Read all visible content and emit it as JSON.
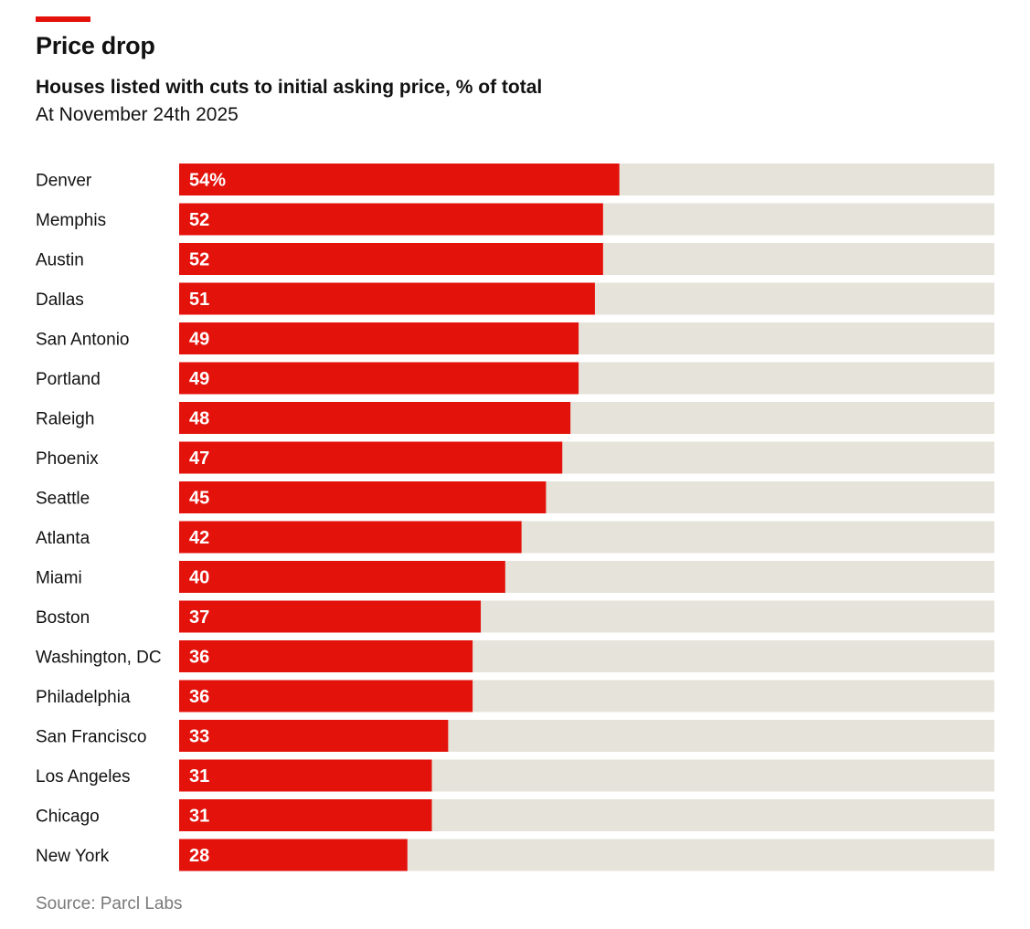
{
  "header": {
    "title": "Price drop",
    "subtitle": "Houses listed with cuts to initial asking price, % of total",
    "date_note": "At November 24th 2025"
  },
  "footer": {
    "source": "Source: Parcl Labs"
  },
  "colors": {
    "accent": "#e3120b",
    "bar": "#e3120b",
    "track": "#e6e3da",
    "label_text": "#121212",
    "value_text": "#ffffff",
    "source_text": "#7a7a7a"
  },
  "chart_data": {
    "type": "bar",
    "orientation": "horizontal",
    "title": "Price drop",
    "subtitle": "Houses listed with cuts to initial asking price, % of total",
    "xlim": [
      0,
      100
    ],
    "grid": false,
    "legend": "none",
    "unit_suffix_first_label": "%",
    "categories": [
      "Denver",
      "Memphis",
      "Austin",
      "Dallas",
      "San Antonio",
      "Portland",
      "Raleigh",
      "Phoenix",
      "Seattle",
      "Atlanta",
      "Miami",
      "Boston",
      "Washington, DC",
      "Philadelphia",
      "San Francisco",
      "Los Angeles",
      "Chicago",
      "New York"
    ],
    "values": [
      54,
      52,
      52,
      51,
      49,
      49,
      48,
      47,
      45,
      42,
      40,
      37,
      36,
      36,
      33,
      31,
      31,
      28
    ],
    "value_labels": [
      "54%",
      "52",
      "52",
      "51",
      "49",
      "49",
      "48",
      "47",
      "45",
      "42",
      "40",
      "37",
      "36",
      "36",
      "33",
      "31",
      "31",
      "28"
    ]
  }
}
